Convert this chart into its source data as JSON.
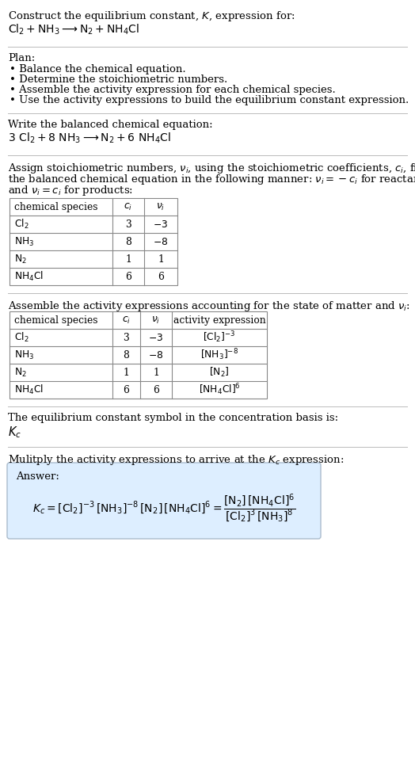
{
  "bg_color": "#ffffff",
  "text_color": "#000000",
  "title_line1": "Construct the equilibrium constant, $K$, expression for:",
  "title_line2": "$\\mathrm{Cl_2 + NH_3 \\longrightarrow N_2 + NH_4Cl}$",
  "plan_header": "Plan:",
  "plan_bullets": [
    "• Balance the chemical equation.",
    "• Determine the stoichiometric numbers.",
    "• Assemble the activity expression for each chemical species.",
    "• Use the activity expressions to build the equilibrium constant expression."
  ],
  "balanced_header": "Write the balanced chemical equation:",
  "balanced_eq": "$\\mathrm{3\\ Cl_2 + 8\\ NH_3 \\longrightarrow N_2 + 6\\ NH_4Cl}$",
  "stoich_header_lines": [
    "Assign stoichiometric numbers, $\\nu_i$, using the stoichiometric coefficients, $c_i$, from",
    "the balanced chemical equation in the following manner: $\\nu_i = -c_i$ for reactants",
    "and $\\nu_i = c_i$ for products:"
  ],
  "table1_cols": [
    "chemical species",
    "$c_i$",
    "$\\nu_i$"
  ],
  "table1_rows": [
    [
      "$\\mathrm{Cl_2}$",
      "3",
      "$-3$"
    ],
    [
      "$\\mathrm{NH_3}$",
      "8",
      "$-8$"
    ],
    [
      "$\\mathrm{N_2}$",
      "1",
      "1"
    ],
    [
      "$\\mathrm{NH_4Cl}$",
      "6",
      "6"
    ]
  ],
  "activity_header": "Assemble the activity expressions accounting for the state of matter and $\\nu_i$:",
  "table2_cols": [
    "chemical species",
    "$c_i$",
    "$\\nu_i$",
    "activity expression"
  ],
  "table2_rows": [
    [
      "$\\mathrm{Cl_2}$",
      "3",
      "$-3$",
      "$[\\mathrm{Cl_2}]^{-3}$"
    ],
    [
      "$\\mathrm{NH_3}$",
      "8",
      "$-8$",
      "$[\\mathrm{NH_3}]^{-8}$"
    ],
    [
      "$\\mathrm{N_2}$",
      "1",
      "1",
      "$[\\mathrm{N_2}]$"
    ],
    [
      "$\\mathrm{NH_4Cl}$",
      "6",
      "6",
      "$[\\mathrm{NH_4Cl}]^{6}$"
    ]
  ],
  "kc_header": "The equilibrium constant symbol in the concentration basis is:",
  "kc_symbol": "$K_c$",
  "multiply_header": "Mulitply the activity expressions to arrive at the $K_c$ expression:",
  "answer_label": "Answer:",
  "answer_eq": "$K_c = [\\mathrm{Cl_2}]^{-3}\\,[\\mathrm{NH_3}]^{-8}\\,[\\mathrm{N_2}]\\,[\\mathrm{NH_4Cl}]^{6} = \\dfrac{[\\mathrm{N_2}]\\,[\\mathrm{NH_4Cl}]^{6}}{[\\mathrm{Cl_2}]^{3}\\,[\\mathrm{NH_3}]^{8}}$",
  "answer_box_color": "#ddeeff",
  "answer_box_border": "#aabbcc",
  "separator_color": "#bbbbbb",
  "table_border_color": "#888888",
  "font_size_main": 9.5,
  "font_size_small": 8.8
}
